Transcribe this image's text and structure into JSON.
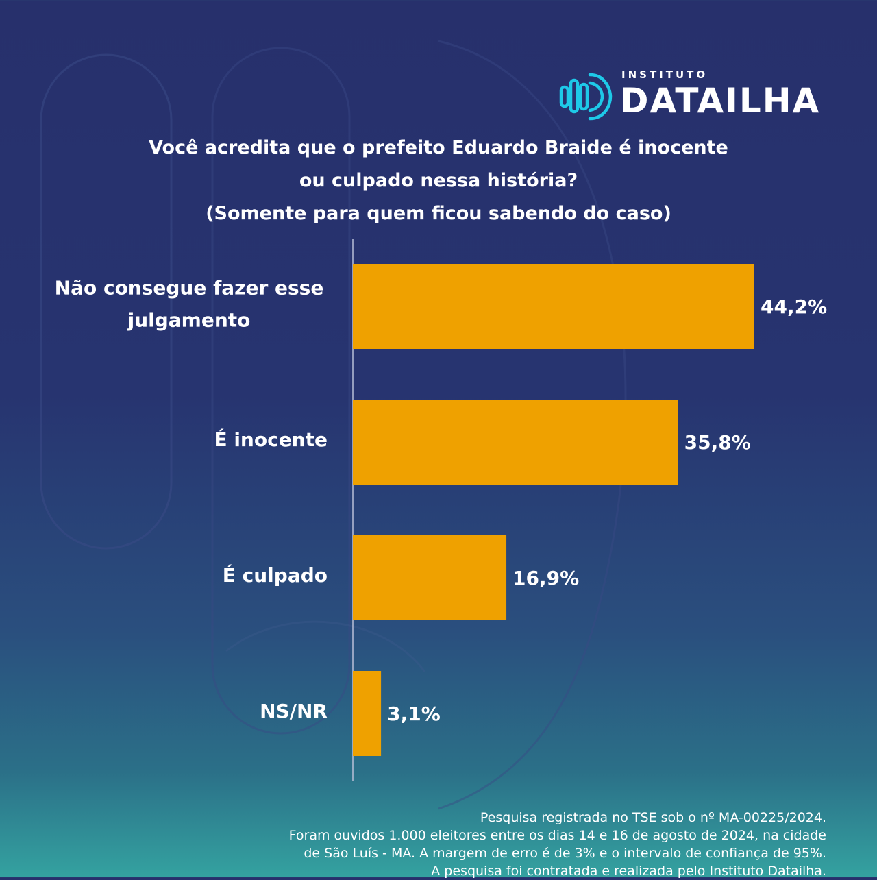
{
  "brand": {
    "small": "INSTITUTO",
    "big": "DATAILHA"
  },
  "colors": {
    "bar": "#efa100",
    "text": "#ffffff",
    "axis": "#b9c0d8",
    "logo_accent": "#1ec9e8"
  },
  "chart_data": {
    "type": "bar",
    "orientation": "horizontal",
    "title_lines": [
      "Você acredita que o prefeito Eduardo Braide é inocente",
      "ou culpado nessa história?",
      "(Somente para quem ficou sabendo do caso)"
    ],
    "categories": [
      [
        "Não consegue fazer esse",
        "julgamento"
      ],
      [
        "É inocente"
      ],
      [
        "É culpado"
      ],
      [
        "NS/NR"
      ]
    ],
    "values": [
      44.2,
      35.8,
      16.9,
      3.1
    ],
    "value_labels": [
      "44,2%",
      "35,8%",
      "16,9%",
      "3,1%"
    ],
    "xlim": [
      0,
      50
    ],
    "grid": false,
    "legend": "none"
  },
  "footnote": [
    "Pesquisa registrada no TSE sob o nº MA-00225/2024.",
    "Foram ouvidos 1.000 eleitores entre os dias 14 e 16 de agosto de 2024, na cidade",
    "de São Luís - MA. A margem de erro é de 3% e o intervalo de confiança de 95%.",
    "A pesquisa foi contratada e realizada pelo Instituto Datailha."
  ]
}
